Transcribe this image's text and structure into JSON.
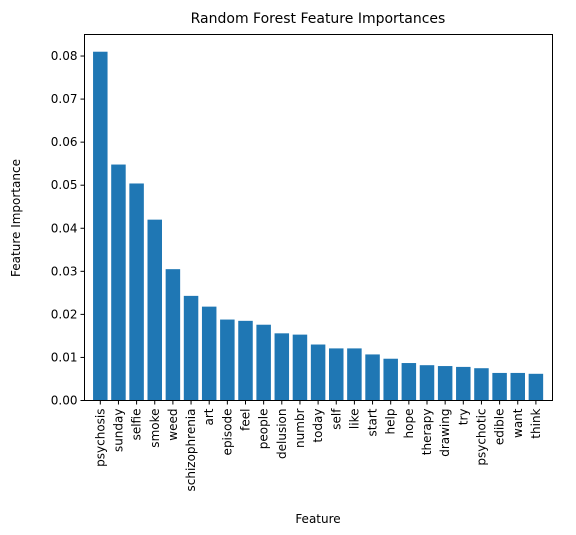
{
  "chart_data": {
    "type": "bar",
    "title": "Random Forest Feature Importances",
    "xlabel": "Feature",
    "ylabel": "Feature Importance",
    "ylim": [
      0,
      0.085
    ],
    "yticks": [
      "0.00",
      "0.01",
      "0.02",
      "0.03",
      "0.04",
      "0.05",
      "0.06",
      "0.07",
      "0.08"
    ],
    "grid": false,
    "bar_color": "#1f77b4",
    "categories": [
      "psychosis",
      "sunday",
      "selfie",
      "smoke",
      "weed",
      "schizophrenia",
      "art",
      "episode",
      "feel",
      "people",
      "delusion",
      "numbr",
      "today",
      "self",
      "like",
      "start",
      "help",
      "hope",
      "therapy",
      "drawing",
      "try",
      "psychotic",
      "edible",
      "want",
      "think"
    ],
    "values": [
      0.081,
      0.0548,
      0.0504,
      0.042,
      0.0305,
      0.0243,
      0.0218,
      0.0188,
      0.0185,
      0.0176,
      0.0156,
      0.0153,
      0.013,
      0.0121,
      0.0121,
      0.0107,
      0.0097,
      0.0087,
      0.0082,
      0.008,
      0.0078,
      0.0075,
      0.0064,
      0.0064,
      0.0062
    ]
  }
}
